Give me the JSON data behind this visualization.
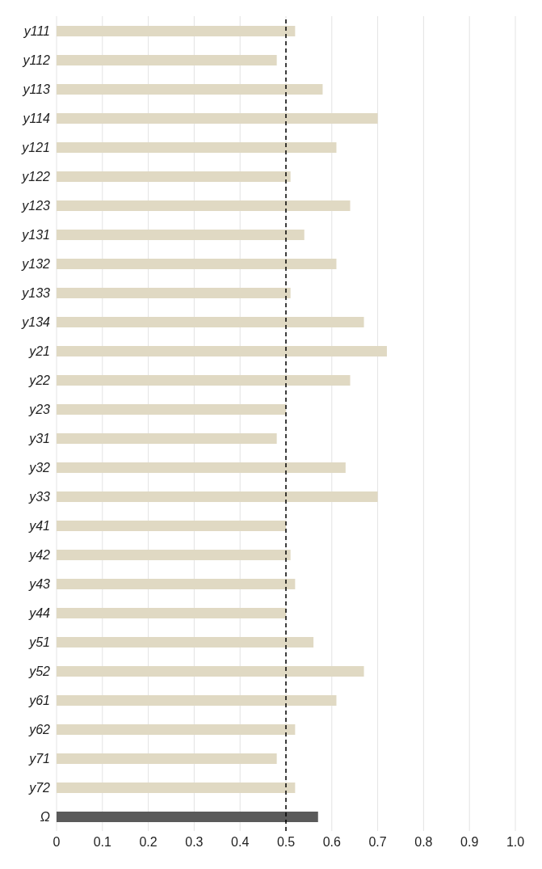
{
  "chart_data": {
    "type": "bar",
    "orientation": "horizontal",
    "categories": [
      "y111",
      "y112",
      "y113",
      "y114",
      "y121",
      "y122",
      "y123",
      "y131",
      "y132",
      "y133",
      "y134",
      "y21",
      "y22",
      "y23",
      "y31",
      "y32",
      "y33",
      "y41",
      "y42",
      "y43",
      "y44",
      "y51",
      "y52",
      "y61",
      "y62",
      "y71",
      "y72",
      "Ω"
    ],
    "values": [
      0.52,
      0.48,
      0.58,
      0.7,
      0.61,
      0.51,
      0.64,
      0.54,
      0.61,
      0.51,
      0.67,
      0.72,
      0.64,
      0.5,
      0.48,
      0.63,
      0.7,
      0.5,
      0.51,
      0.52,
      0.5,
      0.56,
      0.67,
      0.61,
      0.52,
      0.48,
      0.52,
      0.57
    ],
    "colors": [
      "#e0d9c3",
      "#e0d9c3",
      "#e0d9c3",
      "#e0d9c3",
      "#e0d9c3",
      "#e0d9c3",
      "#e0d9c3",
      "#e0d9c3",
      "#e0d9c3",
      "#e0d9c3",
      "#e0d9c3",
      "#e0d9c3",
      "#e0d9c3",
      "#e0d9c3",
      "#e0d9c3",
      "#e0d9c3",
      "#e0d9c3",
      "#e0d9c3",
      "#e0d9c3",
      "#e0d9c3",
      "#e0d9c3",
      "#e0d9c3",
      "#e0d9c3",
      "#e0d9c3",
      "#e0d9c3",
      "#e0d9c3",
      "#e0d9c3",
      "#5a5a5a"
    ],
    "xlim": [
      0,
      1
    ],
    "xticks": [
      0,
      0.1,
      0.2,
      0.3,
      0.4,
      0.5,
      0.6,
      0.7,
      0.8,
      0.9,
      {
        "value": 1,
        "label": "1.0"
      }
    ],
    "grid": "x",
    "ref_lines": [
      {
        "axis": "x",
        "value": 0.5,
        "label": null,
        "color": "#000000",
        "line_style": "dashed"
      }
    ]
  }
}
